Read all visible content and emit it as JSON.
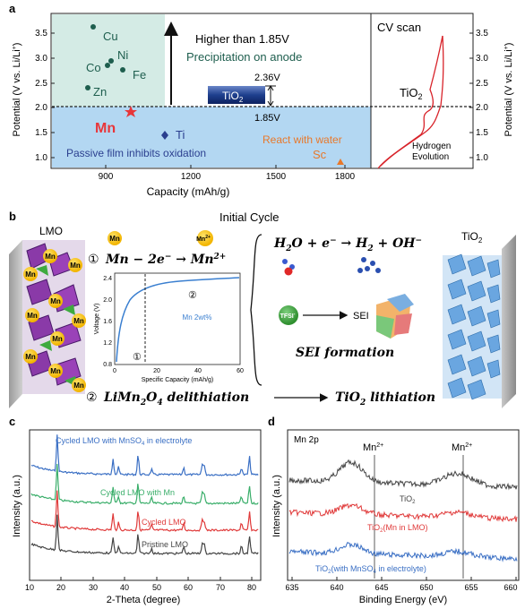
{
  "panel_a": {
    "label": "a",
    "ylabel": "Potential (V vs. Li/Li",
    "ylabel_sup": "+",
    "ylabel_tail": ")",
    "xlabel": "Capacity (mAh/g)",
    "yticks": [
      "1.0",
      "1.5",
      "2.0",
      "2.5",
      "3.0",
      "3.5"
    ],
    "xticks": [
      "900",
      "1200",
      "1500",
      "1800"
    ],
    "metals": [
      "Cu",
      "Ni",
      "Co",
      "Fe",
      "Zn"
    ],
    "higher_text": "Higher than 1.85V",
    "precip_text": "Precipitation on anode",
    "v_236": "2.36V",
    "v_185": "1.85V",
    "tio2_box": "TiO",
    "tio2_sub": "2",
    "mn_label": "Mn",
    "ti_label": "Ti",
    "passive_text": "Passive film inhibits oxidation",
    "react_text": "React with water",
    "sc_label": "Sc",
    "cv_title": "CV scan",
    "cv_tio2": "TiO",
    "cv_tio2_sub": "2",
    "hydrogen1": "Hydrogen",
    "hydrogen2": "Evolution",
    "colors": {
      "teal_box": "#d4ebe5",
      "blue_box": "#b3d7f2",
      "mn_red": "#e8363a",
      "ti_blue": "#2b3f8f",
      "sc_orange": "#e8782a",
      "metal_green": "#1e5e4e"
    }
  },
  "panel_b": {
    "label": "b",
    "initial_cycle": "Initial Cycle",
    "lmo": "LMO",
    "tio2": "TiO",
    "tio2_sub": "2",
    "mn_badge": "Mn",
    "mn2_badge": "Mn",
    "mn2_sup": "2+",
    "eq1_num": "①",
    "eq1": "Mn − 2e",
    "eq1_sup": "−",
    "eq1_arrow": " → Mn",
    "eq1_sup2": "2+",
    "eq2": "H",
    "eq2_a": "2",
    "eq2_b": "O + e",
    "eq2_c": "−",
    "eq2_d": " → H",
    "eq2_e": "2",
    "eq2_f": " + OH",
    "eq2_g": "−",
    "tfsi": "TFSI",
    "tfsi_sup": "-",
    "sei": "SEI",
    "sei_formation": "SEI formation",
    "eq3_num": "②",
    "eq3_left": "LiMn",
    "eq3_left_sub": "2",
    "eq3_left_o": "O",
    "eq3_left_sub2": "4",
    "eq3_left_tail": " delithiation",
    "eq3_right": "TiO",
    "eq3_right_sub": "2",
    "eq3_right_tail": " lithiation",
    "inset": {
      "ylabel": "Voltage (V)",
      "xlabel": "Specific Capacity (mAh/g)",
      "yticks": [
        "0.8",
        "1.2",
        "1.6",
        "2.0",
        "2.4"
      ],
      "xticks": [
        "0",
        "20",
        "40",
        "60"
      ],
      "legend": "Mn 2wt%",
      "mark1": "①",
      "mark2": "②"
    }
  },
  "panel_c": {
    "label": "c",
    "ylabel": "Intensity (a.u.)",
    "xlabel": "2-Theta (degree)",
    "xticks": [
      "10",
      "20",
      "30",
      "40",
      "50",
      "60",
      "70",
      "80"
    ],
    "series": [
      {
        "name": "Cycled LMO with MnSO",
        "sub": "4",
        "tail": " in electrolyte",
        "color": "#3a6fc4"
      },
      {
        "name": "Cycled LMO with Mn",
        "color": "#3aae6a"
      },
      {
        "name": "Cycled LMO",
        "color": "#e03a3a"
      },
      {
        "name": "Pristine LMO",
        "color": "#444444"
      }
    ]
  },
  "panel_d": {
    "label": "d",
    "title": "Mn 2p",
    "ylabel": "Intensity (a.u.)",
    "xlabel": "Binding Energy (eV)",
    "xticks": [
      "635",
      "640",
      "645",
      "650",
      "655",
      "660"
    ],
    "mn_peak": "Mn",
    "mn_peak_sup": "2+",
    "series": [
      {
        "name": "TiO",
        "sub": "2",
        "tail": "",
        "color": "#444444"
      },
      {
        "name": "TiO",
        "sub": "2",
        "tail": "(Mn in LMO)",
        "color": "#e03a3a"
      },
      {
        "name": "TiO",
        "sub": "2",
        "tail": "(with MnSO",
        "sub2": "4",
        "tail2": " in electrolyte)",
        "color": "#3a6fc4"
      }
    ]
  }
}
